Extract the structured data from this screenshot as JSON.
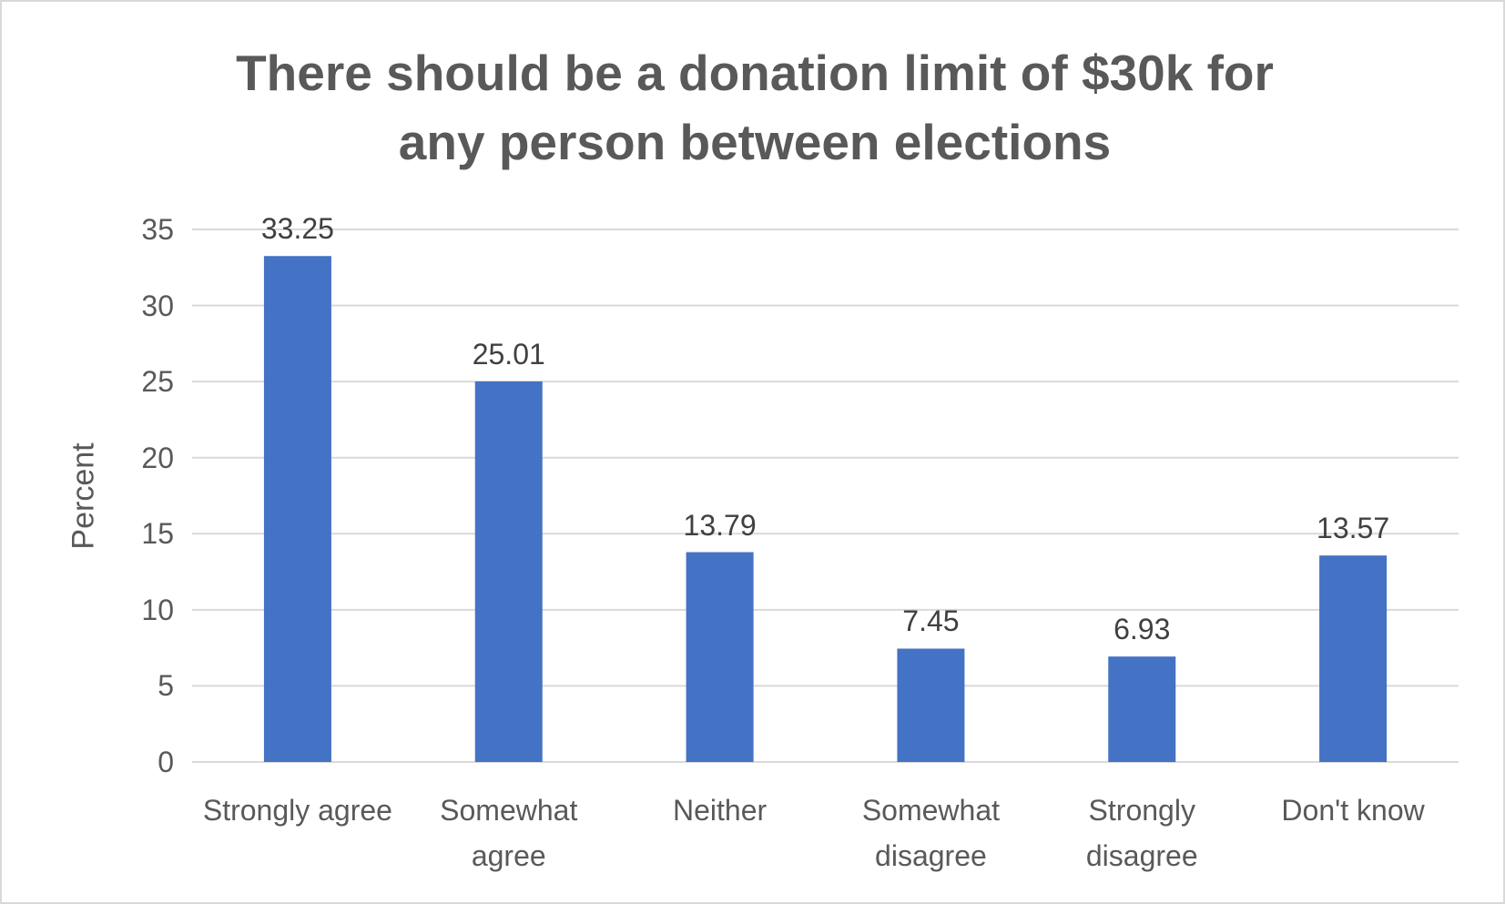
{
  "chart_data": {
    "type": "bar",
    "title": "There should be a donation limit of $30k for any person between elections",
    "y_label": "Percent",
    "categories": [
      "Strongly agree",
      "Somewhat agree",
      "Neither",
      "Somewhat disagree",
      "Strongly disagree",
      "Don't know"
    ],
    "values": [
      33.25,
      25.01,
      13.79,
      7.45,
      6.93,
      13.57
    ],
    "color": "#4472c4",
    "ylim": [
      0,
      35
    ],
    "yticks": [
      0,
      5,
      10,
      15,
      20,
      25,
      30,
      35
    ],
    "grid": true
  }
}
